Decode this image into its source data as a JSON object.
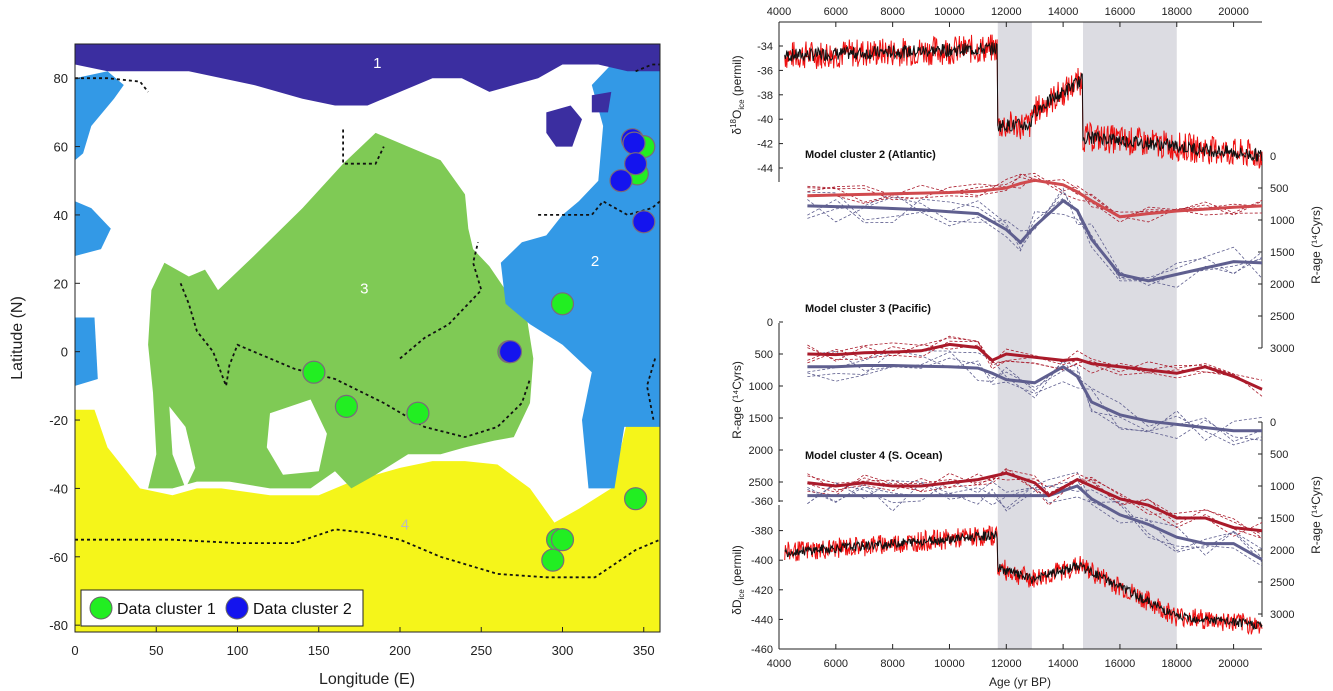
{
  "colors": {
    "arctic": "#3b2ea0",
    "atlantic": "#3399e6",
    "pacific": "#7fca55",
    "southern": "#f5f51a",
    "cluster1": "#22ee22",
    "cluster2": "#1414ee",
    "ice_red": "#ee1111",
    "ice_black": "#111111",
    "model_red": "#aa1a2a",
    "model_blue": "#5f5f8f",
    "shade": "#dcdce2"
  },
  "chart_data": [
    {
      "type": "scatter",
      "xlabel": "Longitude (E)",
      "ylabel": "Latitude (N)",
      "xlim": [
        0,
        360
      ],
      "ylim": [
        -82,
        90
      ],
      "xticks": [
        0,
        50,
        100,
        150,
        200,
        250,
        300,
        350
      ],
      "yticks": [
        -80,
        -60,
        -40,
        -20,
        0,
        20,
        40,
        60,
        80
      ],
      "region_labels": [
        {
          "text": "1",
          "x": 186,
          "y": 83
        },
        {
          "text": "2",
          "x": 320,
          "y": 25
        },
        {
          "text": "3",
          "x": 178,
          "y": 17
        },
        {
          "text": "4",
          "x": 203,
          "y": -52
        }
      ],
      "legend": {
        "placement": "bottom-left",
        "entries": [
          "Data cluster 1",
          "Data cluster 2"
        ]
      },
      "series": [
        {
          "name": "Data cluster 1",
          "color": "#22ee22",
          "points": [
            [
              147,
              -6
            ],
            [
              167,
              -16
            ],
            [
              211,
              -18
            ],
            [
              267,
              0
            ],
            [
              300,
              14
            ],
            [
              345,
              -43
            ],
            [
              297,
              -55
            ],
            [
              300,
              -55
            ],
            [
              294,
              -61
            ],
            [
              350,
              60
            ],
            [
              346,
              52
            ]
          ]
        },
        {
          "name": "Data cluster 2",
          "color": "#1414ee",
          "points": [
            [
              343,
              62
            ],
            [
              344,
              61
            ],
            [
              345,
              55
            ],
            [
              336,
              50
            ],
            [
              350,
              38
            ],
            [
              268,
              0
            ]
          ]
        }
      ]
    },
    {
      "type": "line",
      "xlabel": "Age (yr BP)",
      "xlim": [
        4000,
        21000
      ],
      "xticks": [
        4000,
        6000,
        8000,
        10000,
        12000,
        14000,
        16000,
        18000,
        20000
      ],
      "shaded_intervals": [
        [
          11700,
          12900
        ],
        [
          14700,
          18000
        ]
      ],
      "top_panel": {
        "ylabel_main": "δ",
        "ylabel_sup": "18",
        "ylabel_rest": "O",
        "ylabel_sub": "ice",
        "ylabel_unit": " (permil)",
        "ylim": [
          -44.5,
          -33
        ],
        "yticks": [
          -44,
          -42,
          -40,
          -38,
          -36,
          -34
        ]
      },
      "bottom_panel": {
        "ylabel_main": "δD",
        "ylabel_sub": "ice",
        "ylabel_unit": " (permil)",
        "ylim": [
          -460,
          -355
        ],
        "yticks": [
          -460,
          -440,
          -420,
          -400,
          -380,
          -360
        ]
      },
      "model_panels": [
        {
          "title": "Model cluster 2 (Atlantic)",
          "yticks": [
            0,
            500,
            1000,
            1500,
            2000,
            2500,
            3000
          ],
          "ylabel": "R-age (¹⁴Cyrs)",
          "axis": "right",
          "x": [
            5000,
            6000,
            7000,
            8000,
            9000,
            10000,
            11000,
            12000,
            12500,
            13000,
            14000,
            14500,
            15000,
            16000,
            17000,
            18000,
            19000,
            20000,
            21000
          ],
          "red": [
            620,
            610,
            600,
            590,
            580,
            570,
            550,
            500,
            430,
            380,
            450,
            560,
            700,
            950,
            900,
            860,
            830,
            800,
            780
          ],
          "blue": [
            780,
            790,
            800,
            820,
            840,
            870,
            900,
            1150,
            1350,
            1100,
            700,
            850,
            1300,
            1850,
            1950,
            1850,
            1750,
            1650,
            1670
          ]
        },
        {
          "title": "Model cluster 3 (Pacific)",
          "yticks": [
            0,
            500,
            1000,
            1500,
            2000,
            2500
          ],
          "ylabel": "R-age (¹⁴Cyrs)",
          "axis": "left",
          "x": [
            5000,
            6000,
            7000,
            8000,
            9000,
            10000,
            11000,
            11500,
            12000,
            13000,
            14000,
            14500,
            15000,
            16000,
            17000,
            18000,
            19000,
            20000,
            21000
          ],
          "red": [
            500,
            510,
            480,
            470,
            450,
            350,
            400,
            600,
            500,
            550,
            600,
            580,
            650,
            700,
            750,
            800,
            700,
            850,
            1050
          ],
          "blue": [
            700,
            700,
            680,
            680,
            690,
            700,
            720,
            800,
            900,
            950,
            700,
            850,
            1250,
            1450,
            1550,
            1600,
            1650,
            1700,
            1700
          ]
        },
        {
          "title": "Model cluster 4 (S. Ocean)",
          "yticks": [
            0,
            500,
            1000,
            1500,
            2000,
            2500,
            3000
          ],
          "ylabel": "R-age (¹⁴Cyrs)",
          "axis": "right",
          "x": [
            5000,
            6000,
            7000,
            8000,
            9000,
            10000,
            11000,
            11500,
            12000,
            13000,
            13500,
            14500,
            15000,
            16000,
            17000,
            18000,
            19000,
            20000,
            21000
          ],
          "red": [
            950,
            1000,
            950,
            1000,
            1000,
            950,
            900,
            850,
            800,
            950,
            1150,
            900,
            1000,
            1200,
            1300,
            1500,
            1500,
            1650,
            1700
          ],
          "blue": [
            1150,
            1150,
            1150,
            1150,
            1150,
            1150,
            1150,
            1150,
            1150,
            1150,
            1150,
            1000,
            1200,
            1450,
            1600,
            1800,
            1900,
            1900,
            2150
          ]
        }
      ]
    }
  ]
}
